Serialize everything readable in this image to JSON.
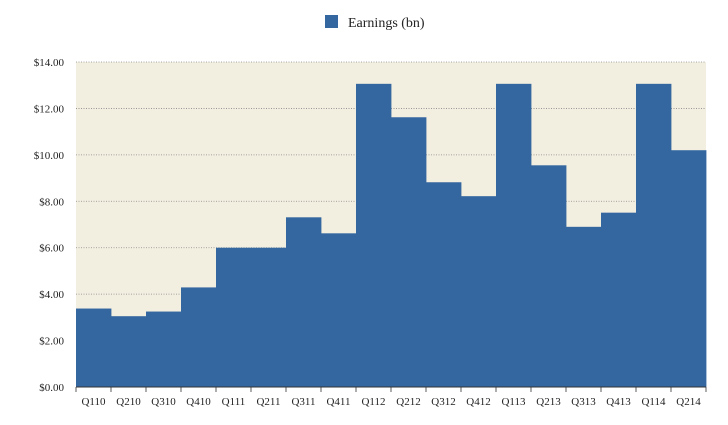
{
  "colors": {
    "bar": "#3467a0",
    "plot_background": "#f2eee0",
    "grid": "#8a8a8a",
    "axis": "#333333"
  },
  "chart_data": {
    "type": "bar",
    "legend": {
      "label": "Earnings (bn)",
      "position": "top-center"
    },
    "categories": [
      "Q110",
      "Q210",
      "Q310",
      "Q410",
      "Q111",
      "Q211",
      "Q311",
      "Q411",
      "Q112",
      "Q212",
      "Q312",
      "Q412",
      "Q113",
      "Q213",
      "Q313",
      "Q413",
      "Q114",
      "Q214"
    ],
    "series": [
      {
        "name": "Earnings (bn)",
        "values": [
          3.38,
          3.05,
          3.25,
          4.29,
          6.0,
          6.0,
          7.31,
          6.62,
          13.06,
          11.62,
          8.82,
          8.22,
          13.06,
          9.55,
          6.9,
          7.51,
          13.06,
          10.2
        ]
      }
    ],
    "ylim": [
      0,
      14
    ],
    "yticks": [
      "$0.00",
      "$2.00",
      "$4.00",
      "$6.00",
      "$8.00",
      "$10.00",
      "$12.00",
      "$14.00"
    ],
    "grid": true,
    "title": "",
    "xlabel": "",
    "ylabel": ""
  }
}
